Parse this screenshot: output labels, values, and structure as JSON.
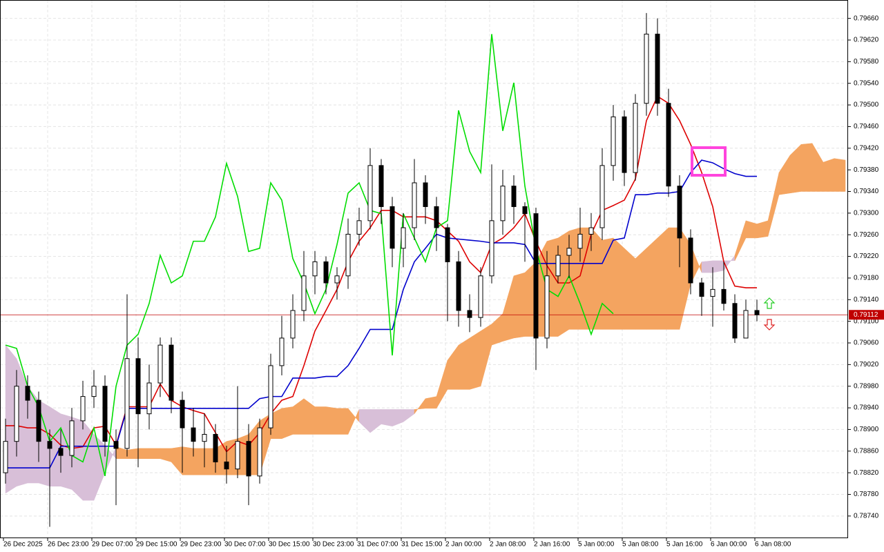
{
  "chart_data": {
    "type": "candlestick",
    "x_labels": [
      "26 Dec 2025",
      "26 Dec 23:00",
      "29 Dec 07:00",
      "29 Dec 15:00",
      "29 Dec 23:00",
      "30 Dec 07:00",
      "30 Dec 15:00",
      "30 Dec 23:00",
      "31 Dec 07:00",
      "31 Dec 15:00",
      "2 Jan 00:00",
      "2 Jan 08:00",
      "2 Jan 16:00",
      "5 Jan 00:00",
      "5 Jan 08:00",
      "5 Jan 16:00",
      "6 Jan 00:00",
      "6 Jan 08:00"
    ],
    "ylim": [
      0.78699,
      0.79694
    ],
    "yticks": [
      {
        "value": 0.7874,
        "label": "0.78740"
      },
      {
        "value": 0.7878,
        "label": "0.78780"
      },
      {
        "value": 0.7882,
        "label": "0.78820"
      },
      {
        "value": 0.7886,
        "label": "0.78860"
      },
      {
        "value": 0.789,
        "label": "0.78900"
      },
      {
        "value": 0.7894,
        "label": "0.78940"
      },
      {
        "value": 0.7898,
        "label": "0.78980"
      },
      {
        "value": 0.7902,
        "label": "0.79020"
      },
      {
        "value": 0.7906,
        "label": "0.79060"
      },
      {
        "value": 0.791,
        "label": "0.79100"
      },
      {
        "value": 0.7914,
        "label": "0.79140"
      },
      {
        "value": 0.7918,
        "label": "0.79180"
      },
      {
        "value": 0.7922,
        "label": "0.79220"
      },
      {
        "value": 0.7926,
        "label": "0.79260"
      },
      {
        "value": 0.793,
        "label": "0.79300"
      },
      {
        "value": 0.7934,
        "label": "0.79340"
      },
      {
        "value": 0.7938,
        "label": "0.79380"
      },
      {
        "value": 0.7942,
        "label": "0.79420"
      },
      {
        "value": 0.7946,
        "label": "0.79460"
      },
      {
        "value": 0.795,
        "label": "0.79500"
      },
      {
        "value": 0.7954,
        "label": "0.79540"
      },
      {
        "value": 0.7958,
        "label": "0.79580"
      },
      {
        "value": 0.7962,
        "label": "0.79620"
      },
      {
        "value": 0.7966,
        "label": "0.79660"
      }
    ],
    "grid": true,
    "last_price": 0.79112,
    "last_price_color": "#c00000",
    "candles": {
      "up_color": "#ffffff",
      "down_color": "#000000",
      "open": [
        0.7882,
        0.78878,
        0.7898,
        0.78954,
        0.78878,
        0.78865,
        0.78852,
        0.78916,
        0.78961,
        0.7898,
        0.78878,
        0.78865,
        0.79031,
        0.78929,
        0.78986,
        0.79056,
        0.78954,
        0.78903,
        0.78878,
        0.78891,
        0.7884,
        0.78827,
        0.78878,
        0.78814,
        0.78903,
        0.79018,
        0.79069,
        0.7912,
        0.79184,
        0.7921,
        0.79171,
        0.79184,
        0.79261,
        0.79286,
        0.79388,
        0.79312,
        0.79235,
        0.79273,
        0.79356,
        0.79312,
        0.79273,
        0.7921,
        0.7912,
        0.79107,
        0.79184,
        0.79286,
        0.7935,
        0.79312,
        0.79299,
        0.79069,
        0.79184,
        0.79222,
        0.79235,
        0.79261,
        0.79273,
        0.79388,
        0.79478,
        0.79375,
        0.79503,
        0.79631,
        0.79503,
        0.7935,
        0.79254,
        0.79171,
        0.79146,
        0.79159,
        0.79133,
        0.79069,
        0.7912,
        null,
        null,
        null,
        null,
        null,
        null,
        null,
        null
      ],
      "high": [
        0.7892,
        0.7901,
        0.79,
        0.7897,
        0.789,
        0.789,
        0.7894,
        0.7899,
        0.7901,
        0.79,
        0.789,
        0.7915,
        0.7907,
        0.7902,
        0.7907,
        0.7907,
        0.7897,
        0.7894,
        0.7893,
        0.7891,
        0.7887,
        0.7898,
        0.7891,
        0.7892,
        0.7904,
        0.7911,
        0.7915,
        0.7923,
        0.7923,
        0.7922,
        0.792,
        0.7929,
        0.7931,
        0.7942,
        0.794,
        0.7933,
        0.793,
        0.794,
        0.7937,
        0.7933,
        0.7928,
        0.7923,
        0.7915,
        0.792,
        0.7939,
        0.7938,
        0.7937,
        0.7932,
        0.7931,
        0.7923,
        0.7924,
        0.7926,
        0.7931,
        0.793,
        0.7942,
        0.795,
        0.7949,
        0.7952,
        0.7967,
        0.7966,
        0.7953,
        0.7937,
        0.7927,
        0.7918,
        0.792,
        0.7921,
        0.7915,
        0.7914,
        0.7914,
        null,
        null,
        null,
        null,
        null,
        null,
        null,
        null
      ],
      "low": [
        0.788,
        0.7885,
        0.7892,
        0.7884,
        0.7872,
        0.7882,
        0.7883,
        0.789,
        0.7894,
        0.7885,
        0.7876,
        0.7885,
        0.7883,
        0.789,
        0.7896,
        0.7893,
        0.7882,
        0.7885,
        0.7883,
        0.7882,
        0.788,
        0.7881,
        0.7876,
        0.788,
        0.7889,
        0.79,
        0.7905,
        0.791,
        0.7915,
        0.7915,
        0.7914,
        0.7916,
        0.7924,
        0.7927,
        0.7928,
        0.792,
        0.792,
        0.7925,
        0.7928,
        0.7923,
        0.791,
        0.7909,
        0.7908,
        0.7909,
        0.7917,
        0.7926,
        0.7928,
        0.7921,
        0.7901,
        0.7905,
        0.7917,
        0.7918,
        0.7921,
        0.7923,
        0.7925,
        0.7936,
        0.7935,
        0.7936,
        0.7948,
        0.7948,
        0.7933,
        0.792,
        0.7915,
        0.7911,
        0.7909,
        0.7912,
        0.7906,
        0.7908,
        0.791,
        null,
        null,
        null,
        null,
        null,
        null,
        null,
        null
      ],
      "close": [
        0.78878,
        0.7898,
        0.78954,
        0.78878,
        0.78865,
        0.78852,
        0.78916,
        0.78961,
        0.7898,
        0.78878,
        0.78865,
        0.79031,
        0.78929,
        0.78986,
        0.79056,
        0.78954,
        0.78903,
        0.78878,
        0.78891,
        0.7884,
        0.78827,
        0.78878,
        0.78814,
        0.78903,
        0.79018,
        0.79069,
        0.7912,
        0.79184,
        0.7921,
        0.79171,
        0.79184,
        0.79261,
        0.79286,
        0.79388,
        0.79312,
        0.79235,
        0.79273,
        0.79356,
        0.79312,
        0.79273,
        0.7921,
        0.7912,
        0.79107,
        0.79184,
        0.79286,
        0.7935,
        0.79312,
        0.79299,
        0.79069,
        0.79184,
        0.79222,
        0.79235,
        0.79261,
        0.79273,
        0.79388,
        0.79478,
        0.79375,
        0.79503,
        0.79631,
        0.79503,
        0.7935,
        0.79254,
        0.79171,
        0.79146,
        0.79159,
        0.79133,
        0.79069,
        0.7912,
        0.79112,
        null,
        null,
        null,
        null,
        null,
        null,
        null,
        null
      ]
    },
    "series": [
      {
        "color": "#dd0000",
        "values": [
          0.78907,
          0.78907,
          0.78903,
          0.78903,
          0.78891,
          0.78871,
          0.78865,
          0.78868,
          0.78903,
          0.78906,
          0.78871,
          0.78942,
          0.78942,
          0.78942,
          0.78984,
          0.78954,
          0.78942,
          0.78935,
          0.78929,
          0.78894,
          0.78859,
          0.78878,
          0.78871,
          0.78894,
          0.78929,
          0.78954,
          0.78961,
          0.79018,
          0.79082,
          0.7912,
          0.79159,
          0.7921,
          0.79248,
          0.79273,
          0.79305,
          0.79305,
          0.79293,
          0.79293,
          0.79293,
          0.79286,
          0.79267,
          0.79248,
          0.7921,
          0.7919,
          0.79242,
          0.79254,
          0.79273,
          0.79299,
          0.79248,
          0.79203,
          0.79171,
          0.79171,
          0.79184,
          0.79261,
          0.79305,
          0.79314,
          0.79324,
          0.79363,
          0.79471,
          0.79516,
          0.79503,
          0.79471,
          0.79427,
          0.79375,
          0.79312,
          0.7921,
          0.79165,
          0.79162,
          0.79162,
          null,
          null,
          null,
          null,
          null,
          null,
          null,
          null
        ]
      },
      {
        "color": "#0000cc",
        "values": [
          0.78829,
          0.78829,
          0.78829,
          0.78829,
          0.78829,
          0.78869,
          0.78869,
          0.78869,
          0.78869,
          0.78869,
          0.78869,
          0.78939,
          0.78939,
          0.78939,
          0.78939,
          0.78939,
          0.78939,
          0.78939,
          0.78939,
          0.78939,
          0.78939,
          0.78939,
          0.78939,
          0.78957,
          0.78961,
          0.78961,
          0.78995,
          0.78995,
          0.78995,
          0.78998,
          0.78998,
          0.79018,
          0.7905,
          0.79085,
          0.79085,
          0.79085,
          0.79159,
          0.7921,
          0.79235,
          0.79261,
          0.79254,
          0.79252,
          0.7925,
          0.79248,
          0.79245,
          0.79245,
          0.79245,
          0.79242,
          0.79207,
          0.79207,
          0.79207,
          0.79207,
          0.79207,
          0.79207,
          0.79207,
          0.7925,
          0.79254,
          0.79334,
          0.79334,
          0.79337,
          0.79337,
          0.7934,
          0.79375,
          0.79398,
          0.79393,
          0.79382,
          0.79373,
          0.79368,
          0.79368,
          null,
          null,
          null,
          null,
          null,
          null,
          null,
          null
        ]
      },
      {
        "color": "#00dd00",
        "values": [
          0.79056,
          0.7905,
          0.7898,
          0.78942,
          0.78878,
          0.78903,
          0.78852,
          0.7884,
          0.78903,
          0.78814,
          0.7898,
          0.79056,
          0.79076,
          0.79133,
          0.79222,
          0.79171,
          0.79184,
          0.79248,
          0.79248,
          0.79293,
          0.79392,
          0.79331,
          0.79229,
          0.79235,
          0.79356,
          0.79324,
          0.79216,
          0.79171,
          0.79114,
          0.79159,
          0.79242,
          0.79337,
          0.79356,
          0.79305,
          0.79299,
          0.79037,
          0.79299,
          0.79254,
          0.7921,
          0.79273,
          0.79286,
          0.7949,
          0.79414,
          0.79375,
          0.79631,
          0.79452,
          0.79541,
          0.7935,
          0.79235,
          0.79159,
          0.79146,
          0.79184,
          0.79133,
          0.79076,
          0.79133,
          0.79114,
          null,
          null,
          null,
          null,
          null,
          null,
          null,
          null,
          null,
          null,
          null,
          null,
          null,
          null,
          null,
          null,
          null,
          null,
          null,
          null,
          null
        ]
      }
    ],
    "cloud": {
      "colors": [
        "#f4a460",
        "#d8bfd8"
      ],
      "span_a": [
        0.78782,
        0.78795,
        0.78801,
        0.78801,
        0.78795,
        0.78795,
        0.78789,
        0.78769,
        0.78769,
        0.7882,
        0.78868,
        0.78862,
        0.78865,
        0.78865,
        0.78865,
        0.78865,
        0.78868,
        0.78865,
        0.78865,
        0.78865,
        0.78878,
        0.78883,
        0.78891,
        0.78916,
        0.78929,
        0.78939,
        0.78942,
        0.78957,
        0.78942,
        0.78942,
        0.78939,
        0.78939,
        0.78914,
        0.78894,
        0.7891,
        0.78906,
        0.78914,
        0.78929,
        0.78957,
        0.78961,
        0.79028,
        0.79056,
        0.79069,
        0.79082,
        0.79095,
        0.79114,
        0.79184,
        0.7919,
        0.7921,
        0.79248,
        0.79254,
        0.79267,
        0.79273,
        0.79273,
        0.7925,
        0.79254,
        0.79235,
        0.79216,
        0.79235,
        0.79254,
        0.79273,
        0.79273,
        0.79242,
        0.7919,
        0.7919,
        0.79194,
        0.79222,
        0.79286,
        0.7928,
        0.79286,
        0.79375,
        0.79407,
        0.79427,
        0.79429,
        0.79394,
        0.79401,
        0.79398
      ],
      "span_b": [
        0.79056,
        0.79031,
        0.7898,
        0.78954,
        0.78942,
        0.78929,
        0.78923,
        0.78916,
        0.78891,
        0.78871,
        0.78846,
        0.78846,
        0.78846,
        0.78846,
        0.78846,
        0.7884,
        0.78816,
        0.78816,
        0.78816,
        0.78816,
        0.78816,
        0.78816,
        0.78816,
        0.78816,
        0.78883,
        0.78883,
        0.78891,
        0.78891,
        0.78891,
        0.78891,
        0.78891,
        0.78891,
        0.78937,
        0.78937,
        0.78937,
        0.78937,
        0.78937,
        0.78937,
        0.78939,
        0.78939,
        0.78974,
        0.78974,
        0.78974,
        0.7898,
        0.79056,
        0.79063,
        0.79069,
        0.79072,
        0.79072,
        0.79072,
        0.79072,
        0.79085,
        0.79085,
        0.79085,
        0.79085,
        0.79085,
        0.79085,
        0.79085,
        0.79085,
        0.79085,
        0.79085,
        0.79085,
        0.79169,
        0.7921,
        0.79212,
        0.79212,
        0.79212,
        0.79254,
        0.79254,
        0.79257,
        0.79334,
        0.79337,
        0.7934,
        0.7934,
        0.7934,
        0.7934,
        0.7934
      ]
    }
  }
}
